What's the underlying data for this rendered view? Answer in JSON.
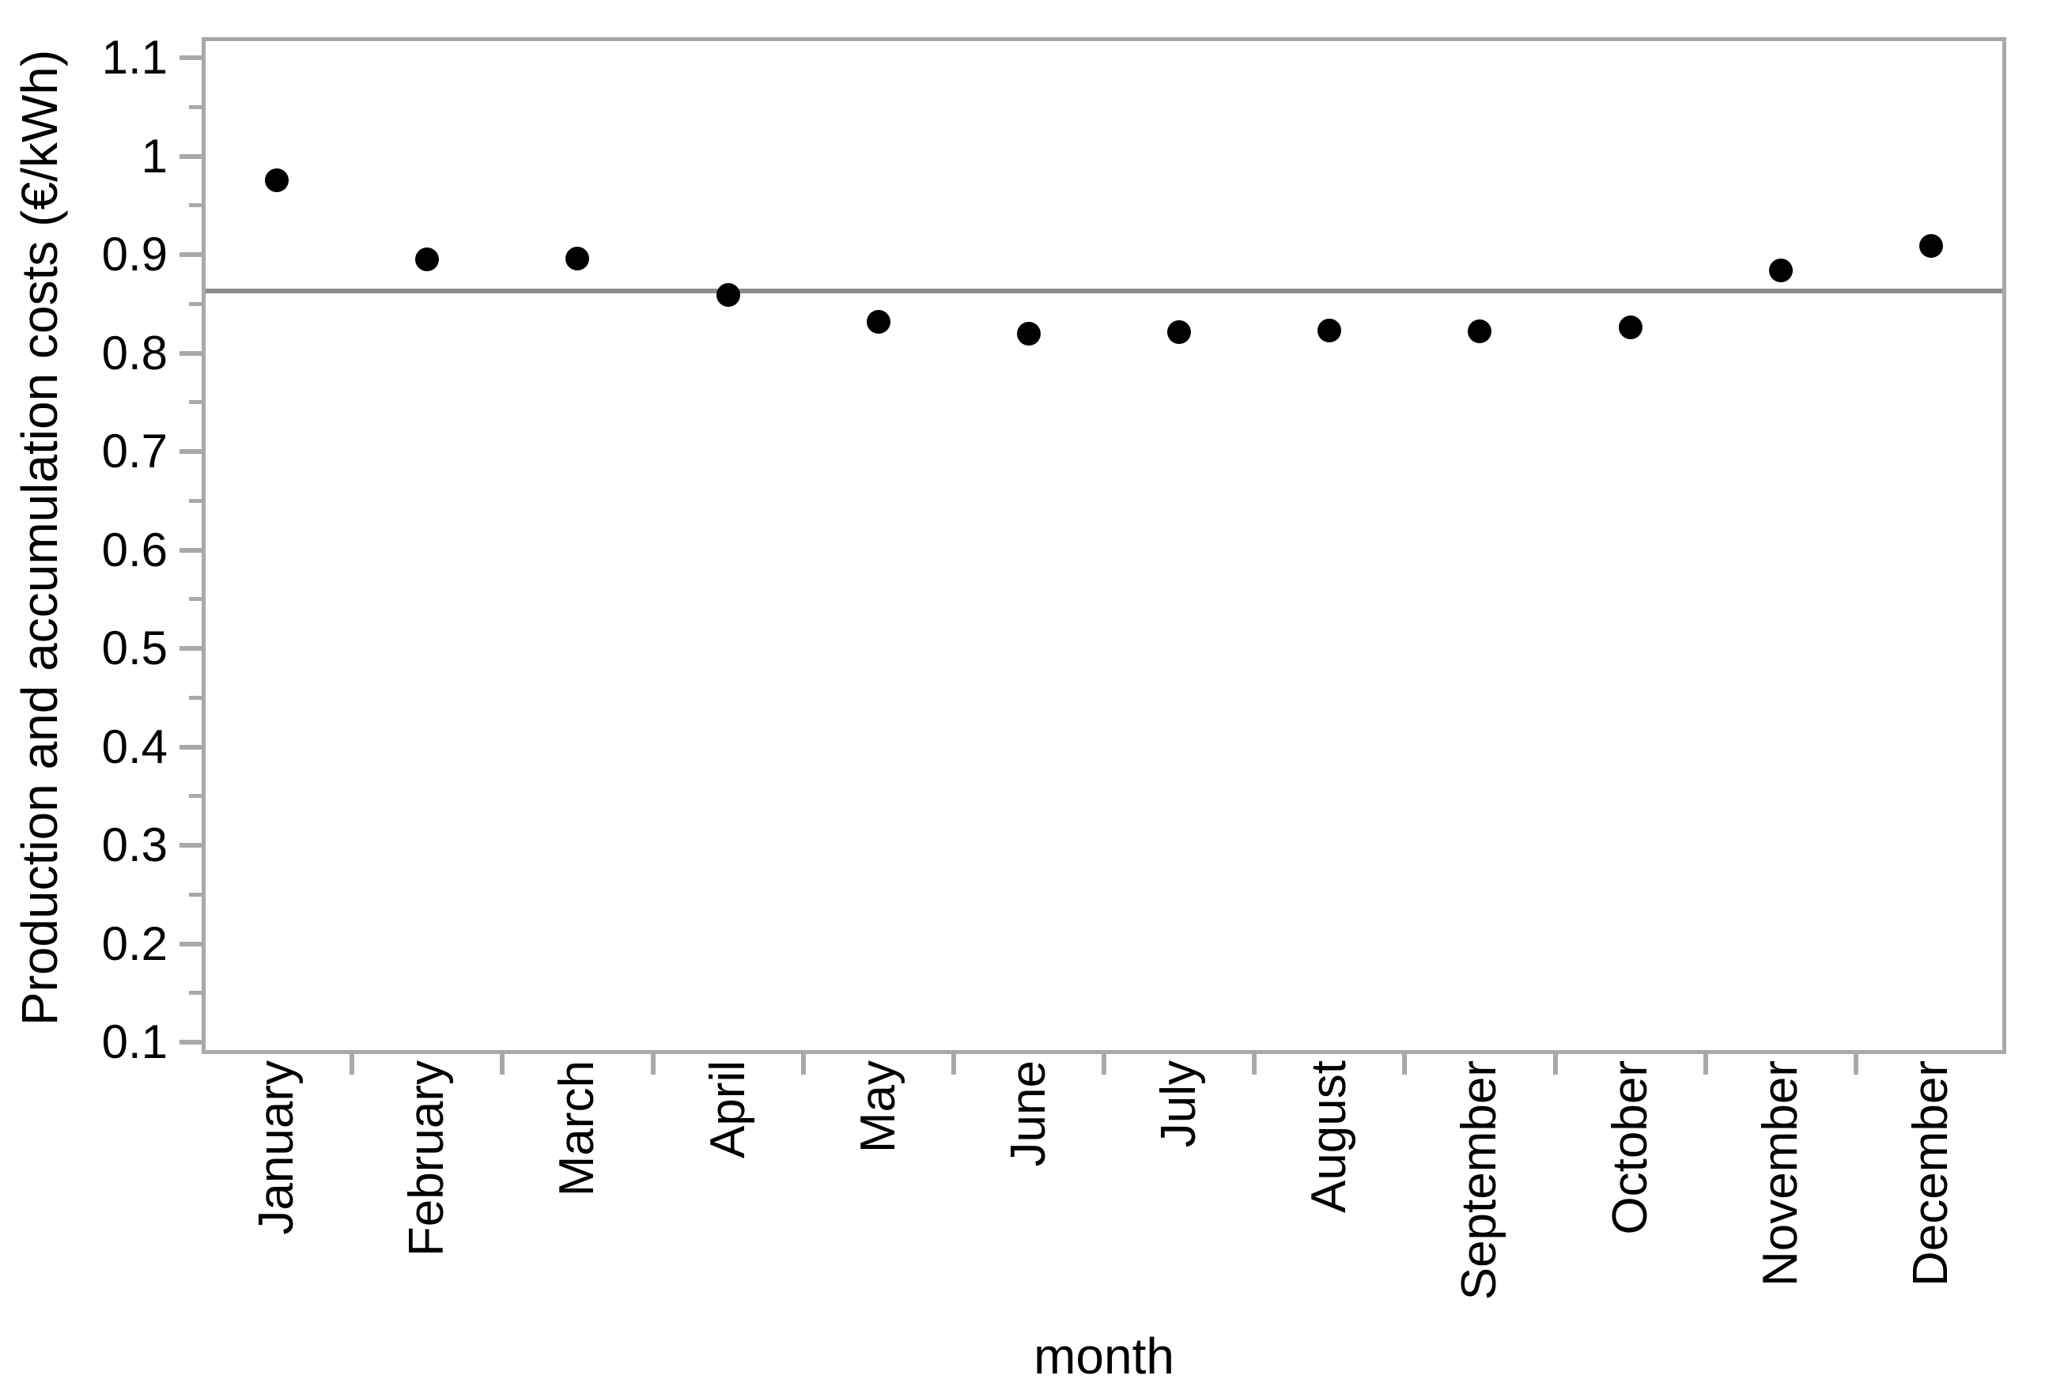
{
  "figure": {
    "background": "#ffffff",
    "border_color": "#a9a9a9",
    "tick_color": "#a9a9a9",
    "dot_color": "#000000",
    "mean_line_color": "#8c8c8c",
    "text_color": "#000000"
  },
  "chart_data": {
    "type": "scatter",
    "title": "",
    "xlabel": "month",
    "ylabel": "Production and accumulation costs (€/kWh)",
    "categories": [
      "January",
      "February",
      "March",
      "April",
      "May",
      "June",
      "July",
      "August",
      "September",
      "October",
      "November",
      "December"
    ],
    "values": [
      0.976,
      0.895,
      0.896,
      0.859,
      0.832,
      0.82,
      0.821,
      0.823,
      0.822,
      0.826,
      0.884,
      0.909
    ],
    "reference_line": 0.863,
    "reference_line_note": "horizontal mean line across full plot width",
    "marker": "filled-circle",
    "ylim": [
      0.088,
      1.121
    ],
    "y_major_ticks": [
      0.1,
      0.2,
      0.3,
      0.4,
      0.5,
      0.6,
      0.7,
      0.8,
      0.9,
      1.0,
      1.1
    ],
    "y_tick_labels": [
      "0.1",
      "0.2",
      "0.3",
      "0.4",
      "0.5",
      "0.6",
      "0.7",
      "0.8",
      "0.9",
      "1",
      "1.1"
    ],
    "y_minor_tick_step": 0.05,
    "x_tick_style": "category-boundary ticks below axis",
    "x_label_rotation": "90deg counterclockwise, end of text anchored at axis",
    "grid": "off",
    "legend": "none"
  }
}
